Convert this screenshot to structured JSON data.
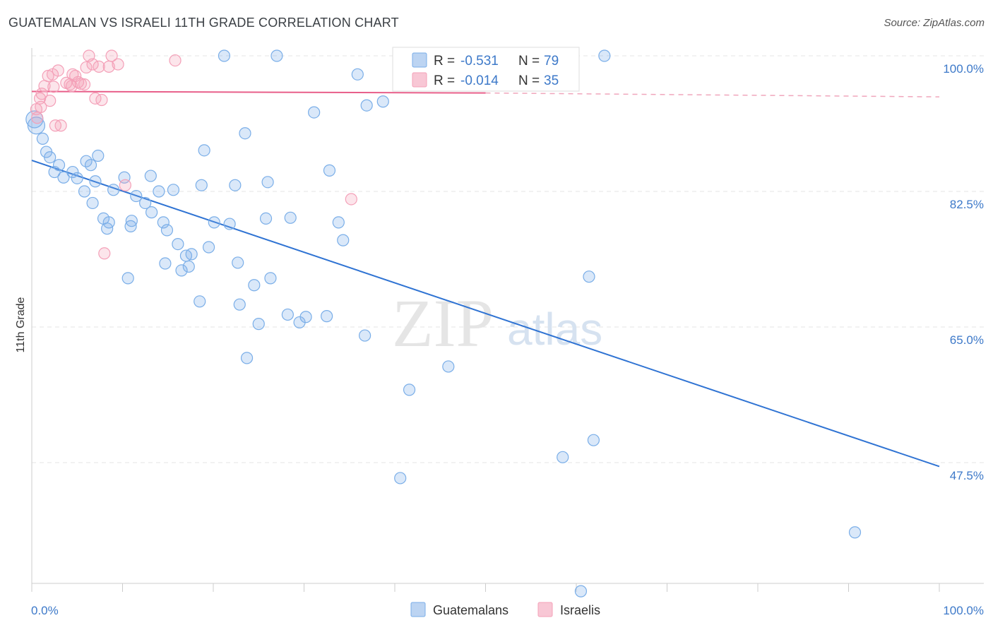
{
  "title": "GUATEMALAN VS ISRAELI 11TH GRADE CORRELATION CHART",
  "source": "Source: ZipAtlas.com",
  "watermark": {
    "zip": "ZIP",
    "atlas": "atlas"
  },
  "legend": {
    "r_label": "R =",
    "n_label": "N =",
    "rows": [
      {
        "r": "-0.531",
        "n": "79",
        "color": "#7aaee8"
      },
      {
        "r": "-0.014",
        "n": "35",
        "color": "#f4a0b8"
      }
    ]
  },
  "bottom_legend": [
    "Guatemalans",
    "Israelis"
  ],
  "chart_data": {
    "type": "scatter",
    "ylabel": "11th Grade",
    "xlabel": "",
    "xlim": [
      0,
      100
    ],
    "ylim": [
      30,
      101
    ],
    "x_tick_labels": [
      "0.0%",
      "100.0%"
    ],
    "y_ticks": [
      100.0,
      82.5,
      65.0,
      47.5
    ],
    "y_tick_labels": [
      "100.0%",
      "82.5%",
      "65.0%",
      "47.5%"
    ],
    "grid": true,
    "series": [
      {
        "name": "Guatemalans",
        "color": "#7aaee8",
        "trend": {
          "x": [
            0,
            100
          ],
          "y": [
            86.5,
            47.0
          ],
          "style": "solid"
        },
        "points": [
          [
            0.3,
            91.8
          ],
          [
            0.5,
            91.0
          ],
          [
            1.2,
            89.3
          ],
          [
            1.6,
            87.6
          ],
          [
            2.0,
            86.9
          ],
          [
            3.0,
            85.9
          ],
          [
            2.5,
            85.0
          ],
          [
            3.5,
            84.3
          ],
          [
            4.5,
            85.0
          ],
          [
            5.0,
            84.2
          ],
          [
            6.0,
            86.4
          ],
          [
            6.5,
            85.9
          ],
          [
            7.3,
            87.1
          ],
          [
            7.0,
            83.8
          ],
          [
            5.8,
            82.5
          ],
          [
            6.7,
            81.0
          ],
          [
            7.9,
            79.0
          ],
          [
            8.5,
            78.5
          ],
          [
            9.0,
            82.7
          ],
          [
            10.2,
            84.3
          ],
          [
            10.9,
            78.0
          ],
          [
            11.5,
            81.9
          ],
          [
            12.5,
            81.0
          ],
          [
            13.1,
            84.5
          ],
          [
            11.0,
            78.7
          ],
          [
            8.3,
            77.7
          ],
          [
            13.2,
            79.8
          ],
          [
            14.0,
            82.5
          ],
          [
            14.5,
            78.5
          ],
          [
            14.9,
            77.5
          ],
          [
            15.6,
            82.7
          ],
          [
            16.1,
            75.7
          ],
          [
            16.5,
            72.3
          ],
          [
            17.0,
            74.2
          ],
          [
            17.3,
            72.8
          ],
          [
            17.6,
            74.4
          ],
          [
            14.7,
            73.2
          ],
          [
            10.6,
            71.3
          ],
          [
            18.5,
            68.3
          ],
          [
            18.7,
            83.3
          ],
          [
            19.0,
            87.8
          ],
          [
            19.5,
            75.3
          ],
          [
            20.1,
            78.5
          ],
          [
            21.2,
            100.0
          ],
          [
            21.8,
            78.3
          ],
          [
            22.4,
            83.3
          ],
          [
            22.7,
            73.3
          ],
          [
            22.9,
            67.9
          ],
          [
            23.5,
            90.0
          ],
          [
            23.7,
            61.0
          ],
          [
            24.5,
            70.4
          ],
          [
            25.0,
            65.4
          ],
          [
            25.8,
            79.0
          ],
          [
            26.0,
            83.7
          ],
          [
            26.3,
            71.3
          ],
          [
            27.0,
            100.0
          ],
          [
            28.2,
            66.6
          ],
          [
            28.5,
            79.1
          ],
          [
            29.5,
            65.6
          ],
          [
            30.2,
            66.3
          ],
          [
            31.1,
            92.7
          ],
          [
            32.5,
            66.4
          ],
          [
            32.8,
            85.2
          ],
          [
            33.8,
            78.5
          ],
          [
            34.3,
            76.2
          ],
          [
            35.9,
            97.6
          ],
          [
            36.7,
            63.9
          ],
          [
            36.9,
            93.6
          ],
          [
            38.7,
            94.1
          ],
          [
            40.6,
            45.5
          ],
          [
            41.6,
            56.9
          ],
          [
            45.9,
            59.9
          ],
          [
            58.5,
            48.2
          ],
          [
            60.5,
            30.9
          ],
          [
            61.9,
            50.4
          ],
          [
            63.1,
            100.0
          ],
          [
            61.4,
            71.5
          ],
          [
            90.7,
            38.5
          ],
          [
            58.8,
            99.5
          ]
        ]
      },
      {
        "name": "Israelis",
        "color": "#f4a0b8",
        "trend": {
          "x": [
            0,
            50,
            100
          ],
          "y": [
            95.4,
            95.2,
            94.7
          ],
          "style": "solid-then-dashed"
        },
        "points": [
          [
            0.5,
            93.1
          ],
          [
            0.6,
            92.0
          ],
          [
            0.9,
            94.5
          ],
          [
            1.1,
            95.1
          ],
          [
            1.4,
            96.1
          ],
          [
            1.8,
            97.4
          ],
          [
            2.0,
            94.2
          ],
          [
            2.3,
            97.6
          ],
          [
            2.6,
            91.0
          ],
          [
            2.9,
            98.1
          ],
          [
            3.2,
            91.0
          ],
          [
            3.8,
            96.5
          ],
          [
            4.2,
            96.3
          ],
          [
            4.5,
            97.6
          ],
          [
            4.8,
            97.4
          ],
          [
            5.1,
            96.6
          ],
          [
            5.4,
            96.4
          ],
          [
            5.8,
            96.3
          ],
          [
            6.0,
            98.5
          ],
          [
            6.3,
            100.0
          ],
          [
            6.7,
            98.9
          ],
          [
            7.0,
            94.5
          ],
          [
            7.4,
            98.6
          ],
          [
            7.7,
            94.3
          ],
          [
            8.0,
            74.5
          ],
          [
            8.5,
            98.6
          ],
          [
            8.8,
            100.0
          ],
          [
            9.5,
            98.9
          ],
          [
            10.3,
            83.3
          ],
          [
            15.8,
            99.4
          ],
          [
            35.2,
            81.5
          ],
          [
            1.0,
            93.4
          ],
          [
            2.4,
            96.0
          ],
          [
            4.4,
            96.1
          ],
          [
            45.1,
            100.0
          ]
        ]
      }
    ]
  }
}
